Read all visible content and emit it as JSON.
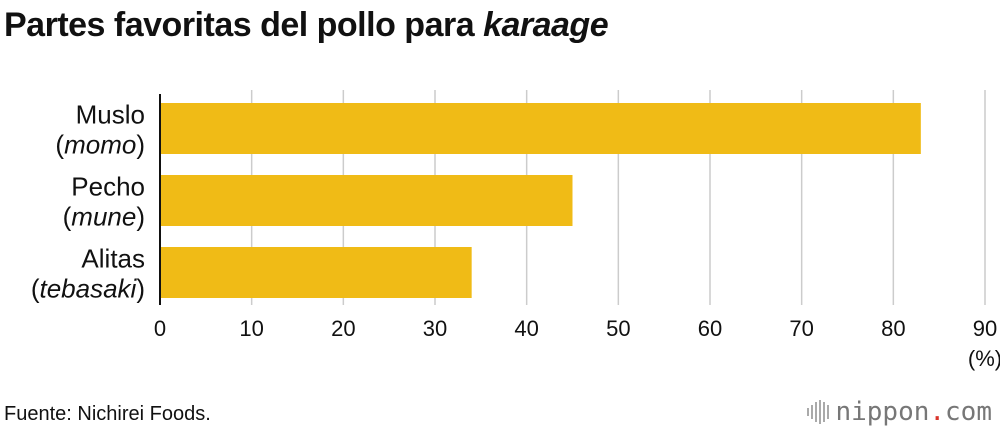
{
  "title": {
    "main": "Partes favoritas del pollo para ",
    "italic": "karaage"
  },
  "chart_data": {
    "type": "bar",
    "orientation": "horizontal",
    "categories": [
      {
        "line1": "Muslo",
        "line2_open": "(",
        "line2_italic": "momo",
        "line2_close": ")"
      },
      {
        "line1": "Pecho",
        "line2_open": "(",
        "line2_italic": "mune",
        "line2_close": ")"
      },
      {
        "line1": "Alitas",
        "line2_open": "(",
        "line2_italic": "tebasaki",
        "line2_close": ")"
      }
    ],
    "values": [
      83,
      45,
      34
    ],
    "xlim": [
      0,
      90
    ],
    "xticks": [
      0,
      10,
      20,
      30,
      40,
      50,
      60,
      70,
      80,
      90
    ],
    "unit_label": "(%)",
    "grid": true,
    "bar_color": "#f0bb16",
    "grid_color": "#cccccc"
  },
  "source": "Fuente: Nichirei Foods.",
  "logo": {
    "name": "nippon",
    "dot": ".",
    "domain": "com",
    "icon": "nippon-logo-bars-icon"
  }
}
